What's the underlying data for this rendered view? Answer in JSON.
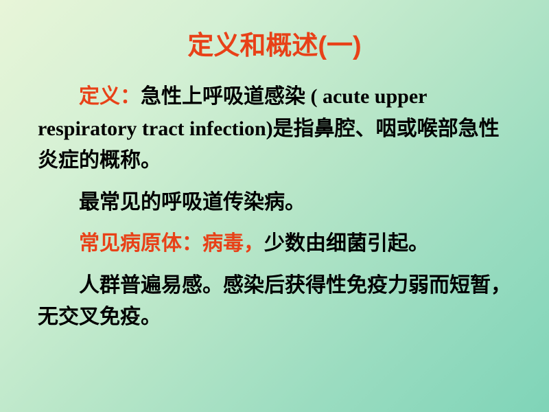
{
  "title": {
    "text": "定义和概述(一)",
    "color": "#e84118",
    "fontsize": 38
  },
  "body": {
    "fontsize": 30,
    "text_color": "#000000",
    "accent_color": "#e84118",
    "paragraphs": [
      {
        "spans": [
          {
            "text": "定义：",
            "accent": true
          },
          {
            "text": "急性上呼吸道感染 ( acute upper respiratory tract infection)是指鼻腔、咽或喉部急性炎症的概称。",
            "accent": false
          }
        ]
      },
      {
        "spans": [
          {
            "text": "最常见的呼吸道传染病。",
            "accent": false
          }
        ]
      },
      {
        "spans": [
          {
            "text": "常见病原体：病毒，",
            "accent": true
          },
          {
            "text": "少数由细菌引起。",
            "accent": false
          }
        ]
      },
      {
        "spans": [
          {
            "text": "人群普遍易感。感染后获得性免疫力弱而短暂，无交叉免疫。",
            "accent": false
          }
        ]
      }
    ]
  },
  "background": {
    "gradient_start": "#e8f5d8",
    "gradient_end": "#7fd4b8"
  }
}
